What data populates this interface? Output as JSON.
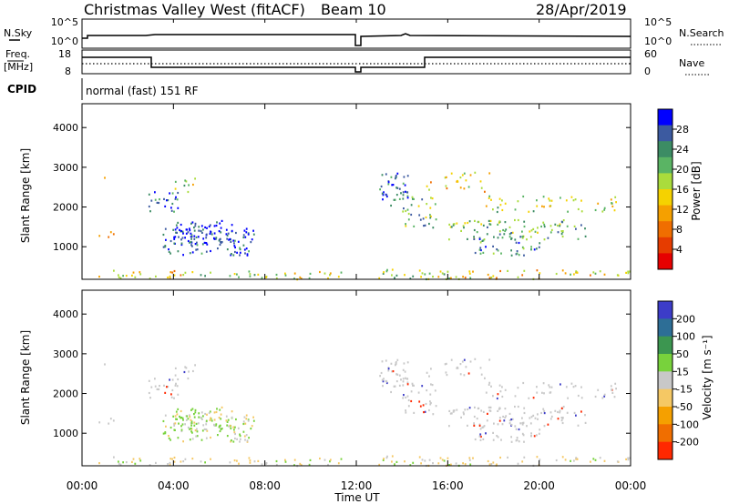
{
  "header": {
    "title": "Christmas Valley West (fitACF)",
    "beam": "Beam 10",
    "date": "28/Apr/2019"
  },
  "aux_panels": {
    "nsky": {
      "label": "N.Sky",
      "ticks": [
        "10^5",
        "10^0"
      ]
    },
    "nsearch": {
      "label": "N.Search",
      "ticks": [
        "10^5",
        "10^0"
      ]
    },
    "freq": {
      "label_top": "Freq.",
      "label_bottom": "[MHz]",
      "ticks": [
        "18",
        "8"
      ]
    },
    "nave": {
      "label": "Nave",
      "ticks": [
        "60",
        "0"
      ]
    },
    "cpid": {
      "label": "CPID",
      "value": "normal (fast) 151 RF"
    }
  },
  "colors": {
    "power_scale": [
      "#0000ff",
      "#3c5aa0",
      "#3c8c64",
      "#5ab464",
      "#aadc3c",
      "#f5d200",
      "#f5a000",
      "#f06e00",
      "#e63c00",
      "#e60000"
    ],
    "velocity_scale": [
      "#3c3cc8",
      "#2d6e96",
      "#3c9650",
      "#78d23c",
      "#c8c8c8",
      "#f5c864",
      "#f5a000",
      "#f06e00",
      "#ff2800"
    ]
  },
  "chart_data": [
    {
      "type": "heatmap",
      "name": "power",
      "ylabel": "Slant Range [km]",
      "ylim": [
        180,
        4600
      ],
      "yticks": [
        1000,
        2000,
        3000,
        4000
      ],
      "xlim": [
        0,
        24
      ],
      "colorbar_label": "Power [dB]",
      "colorbar_ticks": [
        "28",
        "24",
        "20",
        "16",
        "12",
        "8",
        "4"
      ],
      "clim": [
        0,
        32
      ]
    },
    {
      "type": "heatmap",
      "name": "velocity",
      "ylabel": "Slant Range [km]",
      "ylim": [
        180,
        4600
      ],
      "yticks": [
        1000,
        2000,
        3000,
        4000
      ],
      "xlim": [
        0,
        24
      ],
      "colorbar_label": "Velocity [m s⁻¹]",
      "colorbar_ticks": [
        "200",
        "100",
        "50",
        "15",
        "-15",
        "-50",
        "-100",
        "-200"
      ]
    }
  ],
  "x_axis": {
    "label": "Time UT",
    "tick_labels": [
      "00:00",
      "04:00",
      "08:00",
      "12:00",
      "16:00",
      "20:00",
      "00:00"
    ]
  }
}
